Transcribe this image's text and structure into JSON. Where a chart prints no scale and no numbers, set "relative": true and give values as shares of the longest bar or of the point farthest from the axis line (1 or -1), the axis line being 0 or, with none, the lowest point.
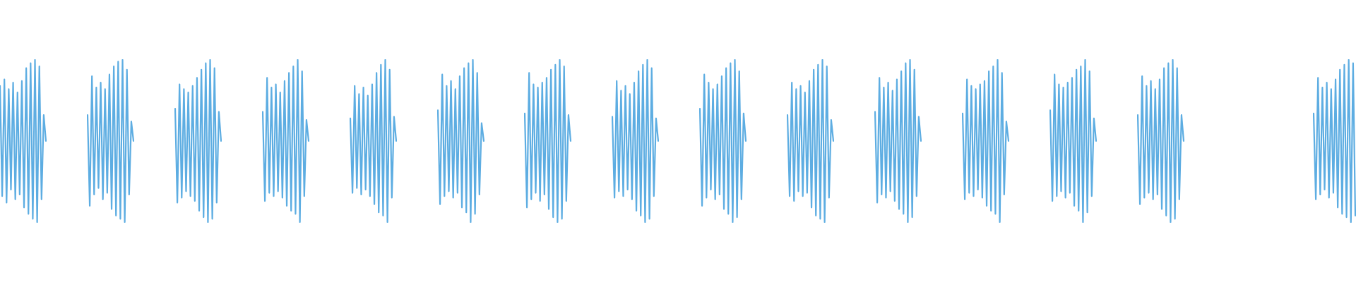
{
  "chart_data": [
    {
      "type": "line",
      "relative": true,
      "color": "#5dade2",
      "categories": [
        null,
        null,
        null,
        null,
        null,
        null,
        null,
        null,
        null,
        null,
        null,
        null,
        null,
        null,
        null,
        null,
        null,
        null,
        null,
        null,
        null,
        null
      ],
      "values": [
        0.84,
        0.16,
        0.88,
        0.12,
        0.82,
        0.2,
        0.86,
        0.14,
        0.8,
        0.17,
        0.87,
        0.09,
        0.95,
        0.05,
        0.98,
        0.02,
        1.0,
        0.0,
        0.96,
        0.14,
        0.66,
        0.5
      ]
    },
    {
      "type": "line",
      "relative": true,
      "color": "#5dade2",
      "categories": [
        null,
        null,
        null,
        null,
        null,
        null,
        null,
        null,
        null,
        null,
        null,
        null,
        null,
        null,
        null,
        null,
        null,
        null,
        null,
        null,
        null,
        null
      ],
      "values": [
        0.66,
        0.1,
        0.9,
        0.17,
        0.83,
        0.21,
        0.86,
        0.14,
        0.82,
        0.18,
        0.91,
        0.08,
        0.96,
        0.04,
        0.99,
        0.02,
        1.0,
        0.0,
        0.94,
        0.17,
        0.62,
        0.5
      ]
    },
    {
      "type": "line",
      "relative": true,
      "color": "#5dade2",
      "categories": [
        null,
        null,
        null,
        null,
        null,
        null,
        null,
        null,
        null,
        null,
        null,
        null,
        null,
        null,
        null,
        null,
        null,
        null,
        null,
        null,
        null,
        null
      ],
      "values": [
        0.7,
        0.12,
        0.85,
        0.15,
        0.82,
        0.19,
        0.8,
        0.16,
        0.84,
        0.13,
        0.89,
        0.07,
        0.94,
        0.03,
        0.98,
        0.0,
        1.0,
        0.02,
        0.95,
        0.12,
        0.68,
        0.5
      ]
    },
    {
      "type": "line",
      "relative": true,
      "color": "#5dade2",
      "categories": [
        null,
        null,
        null,
        null,
        null,
        null,
        null,
        null,
        null,
        null,
        null,
        null,
        null,
        null,
        null,
        null,
        null,
        null,
        null,
        null,
        null,
        null
      ],
      "values": [
        0.68,
        0.13,
        0.89,
        0.18,
        0.83,
        0.16,
        0.85,
        0.19,
        0.8,
        0.15,
        0.87,
        0.1,
        0.92,
        0.07,
        0.96,
        0.05,
        1.0,
        0.0,
        0.93,
        0.16,
        0.63,
        0.5
      ]
    },
    {
      "type": "line",
      "relative": true,
      "color": "#5dade2",
      "categories": [
        null,
        null,
        null,
        null,
        null,
        null,
        null,
        null,
        null,
        null,
        null,
        null,
        null,
        null,
        null,
        null,
        null,
        null,
        null,
        null,
        null,
        null
      ],
      "values": [
        0.64,
        0.18,
        0.84,
        0.21,
        0.79,
        0.17,
        0.83,
        0.2,
        0.78,
        0.16,
        0.85,
        0.11,
        0.92,
        0.06,
        0.97,
        0.04,
        1.0,
        0.0,
        0.94,
        0.15,
        0.65,
        0.5
      ]
    },
    {
      "type": "line",
      "relative": true,
      "color": "#5dade2",
      "categories": [
        null,
        null,
        null,
        null,
        null,
        null,
        null,
        null,
        null,
        null,
        null,
        null,
        null,
        null,
        null,
        null,
        null,
        null,
        null,
        null,
        null,
        null
      ],
      "values": [
        0.69,
        0.11,
        0.91,
        0.16,
        0.84,
        0.19,
        0.87,
        0.15,
        0.82,
        0.18,
        0.9,
        0.09,
        0.95,
        0.06,
        0.98,
        0.0,
        1.0,
        0.05,
        0.92,
        0.17,
        0.61,
        0.5
      ]
    },
    {
      "type": "line",
      "relative": true,
      "color": "#5dade2",
      "categories": [
        null,
        null,
        null,
        null,
        null,
        null,
        null,
        null,
        null,
        null,
        null,
        null,
        null,
        null,
        null,
        null,
        null,
        null,
        null,
        null,
        null,
        null
      ],
      "values": [
        0.67,
        0.09,
        0.92,
        0.14,
        0.85,
        0.18,
        0.83,
        0.13,
        0.86,
        0.17,
        0.89,
        0.08,
        0.94,
        0.03,
        0.97,
        0.0,
        1.0,
        0.02,
        0.96,
        0.13,
        0.66,
        0.5
      ]
    },
    {
      "type": "line",
      "relative": true,
      "color": "#5dade2",
      "categories": [
        null,
        null,
        null,
        null,
        null,
        null,
        null,
        null,
        null,
        null,
        null,
        null,
        null,
        null,
        null,
        null,
        null,
        null,
        null,
        null,
        null,
        null
      ],
      "values": [
        0.65,
        0.15,
        0.87,
        0.19,
        0.81,
        0.16,
        0.84,
        0.2,
        0.79,
        0.14,
        0.86,
        0.07,
        0.93,
        0.04,
        0.97,
        0.0,
        1.0,
        0.02,
        0.95,
        0.16,
        0.64,
        0.5
      ]
    },
    {
      "type": "line",
      "relative": true,
      "color": "#5dade2",
      "categories": [
        null,
        null,
        null,
        null,
        null,
        null,
        null,
        null,
        null,
        null,
        null,
        null,
        null,
        null,
        null,
        null,
        null,
        null,
        null,
        null,
        null,
        null
      ],
      "values": [
        0.7,
        0.1,
        0.91,
        0.15,
        0.86,
        0.2,
        0.82,
        0.14,
        0.85,
        0.17,
        0.9,
        0.08,
        0.95,
        0.05,
        0.98,
        0.0,
        1.0,
        0.03,
        0.93,
        0.14,
        0.67,
        0.5
      ]
    },
    {
      "type": "line",
      "relative": true,
      "color": "#5dade2",
      "categories": [
        null,
        null,
        null,
        null,
        null,
        null,
        null,
        null,
        null,
        null,
        null,
        null,
        null,
        null,
        null,
        null,
        null,
        null,
        null,
        null,
        null,
        null
      ],
      "values": [
        0.66,
        0.16,
        0.86,
        0.13,
        0.82,
        0.19,
        0.84,
        0.16,
        0.8,
        0.18,
        0.87,
        0.09,
        0.94,
        0.04,
        0.97,
        0.02,
        1.0,
        0.0,
        0.96,
        0.15,
        0.63,
        0.5
      ]
    },
    {
      "type": "line",
      "relative": true,
      "color": "#5dade2",
      "categories": [
        null,
        null,
        null,
        null,
        null,
        null,
        null,
        null,
        null,
        null,
        null,
        null,
        null,
        null,
        null,
        null,
        null,
        null,
        null,
        null,
        null,
        null
      ],
      "values": [
        0.68,
        0.12,
        0.89,
        0.17,
        0.83,
        0.15,
        0.86,
        0.19,
        0.81,
        0.13,
        0.88,
        0.08,
        0.93,
        0.05,
        0.98,
        0.0,
        1.0,
        0.03,
        0.94,
        0.16,
        0.65,
        0.5
      ]
    },
    {
      "type": "line",
      "relative": true,
      "color": "#5dade2",
      "categories": [
        null,
        null,
        null,
        null,
        null,
        null,
        null,
        null,
        null,
        null,
        null,
        null,
        null,
        null,
        null,
        null,
        null,
        null,
        null,
        null,
        null,
        null
      ],
      "values": [
        0.67,
        0.14,
        0.88,
        0.18,
        0.84,
        0.16,
        0.82,
        0.2,
        0.85,
        0.15,
        0.87,
        0.1,
        0.93,
        0.07,
        0.96,
        0.05,
        1.0,
        0.0,
        0.92,
        0.17,
        0.62,
        0.5
      ]
    },
    {
      "type": "line",
      "relative": true,
      "color": "#5dade2",
      "categories": [
        null,
        null,
        null,
        null,
        null,
        null,
        null,
        null,
        null,
        null,
        null,
        null,
        null,
        null,
        null,
        null,
        null,
        null,
        null,
        null,
        null,
        null
      ],
      "values": [
        0.69,
        0.13,
        0.91,
        0.16,
        0.85,
        0.19,
        0.83,
        0.15,
        0.86,
        0.18,
        0.89,
        0.1,
        0.94,
        0.07,
        0.96,
        0.0,
        1.0,
        0.06,
        0.93,
        0.16,
        0.64,
        0.5
      ]
    },
    {
      "type": "line",
      "relative": true,
      "color": "#5dade2",
      "categories": [
        null,
        null,
        null,
        null,
        null,
        null,
        null,
        null,
        null,
        null,
        null,
        null,
        null,
        null,
        null,
        null,
        null,
        null,
        null,
        null,
        null,
        null
      ],
      "values": [
        0.66,
        0.11,
        0.9,
        0.15,
        0.84,
        0.18,
        0.87,
        0.14,
        0.82,
        0.17,
        0.88,
        0.08,
        0.95,
        0.04,
        0.98,
        0.0,
        1.0,
        0.02,
        0.95,
        0.14,
        0.66,
        0.5
      ]
    },
    {
      "type": "line",
      "relative": true,
      "color": "#5dade2",
      "categories": [
        null,
        null,
        null,
        null,
        null,
        null,
        null,
        null,
        null,
        null,
        null,
        null,
        null,
        null,
        null,
        null,
        null,
        null,
        null,
        null
      ],
      "values": [
        0.67,
        0.14,
        0.89,
        0.17,
        0.83,
        0.2,
        0.86,
        0.15,
        0.82,
        0.18,
        0.88,
        0.09,
        0.94,
        0.05,
        0.97,
        0.03,
        1.0,
        0.0,
        0.98,
        0.04
      ]
    }
  ]
}
